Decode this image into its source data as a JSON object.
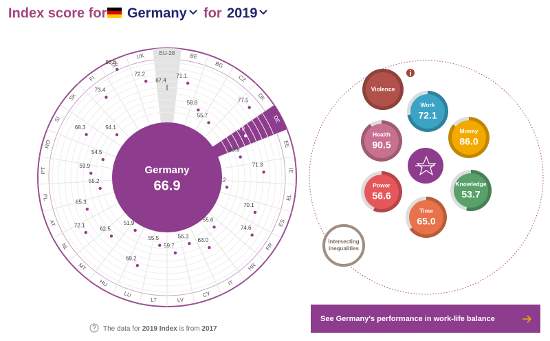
{
  "header": {
    "prefix": "Index score for",
    "country": "Germany",
    "middle": "for",
    "year": "2019"
  },
  "chart_data": {
    "type": "radial",
    "categories": [
      "EU-28",
      "BE",
      "BG",
      "CZ",
      "DK",
      "DE",
      "EE",
      "IE",
      "EL",
      "ES",
      "FR",
      "HR",
      "IT",
      "CY",
      "LV",
      "LT",
      "LU",
      "HU",
      "MT",
      "NL",
      "AT",
      "PL",
      "PT",
      "RO",
      "SI",
      "SK",
      "FI",
      "SE",
      "UK"
    ],
    "values": [
      67.4,
      71.1,
      58.8,
      55.7,
      77.5,
      66.9,
      59.8,
      71.3,
      51.2,
      70.1,
      74.6,
      55.6,
      63.0,
      56.3,
      59.7,
      55.5,
      69.2,
      51.9,
      62.5,
      72.1,
      65.3,
      55.2,
      59.9,
      54.5,
      68.3,
      54.1,
      73.4,
      83.6,
      72.2
    ],
    "value_labels": [
      "67.4",
      "71.1",
      "58.8",
      "55.7",
      "77.5",
      "66.9",
      "59.8",
      "71.3",
      "51.2",
      "70.1",
      "74.6",
      "55.6",
      "63.0",
      "56.3",
      "59.7",
      "55.5",
      "69.2",
      "51.9",
      "62.5",
      "72.1",
      "65.3",
      "55.2",
      "59.9",
      "54.5",
      "68.3",
      "54.1",
      "73.4",
      "83.6",
      "72.2"
    ],
    "color": "#8e3c8d"
  },
  "domains": [
    {
      "name": "Violence",
      "color": "#b0524a"
    },
    {
      "name": "Work",
      "value": 72.1,
      "value_label": "72.1",
      "color": "#3ba3c6"
    },
    {
      "name": "Money",
      "value": 86.0,
      "value_label": "86.0",
      "color": "#f2a900"
    },
    {
      "name": "Health",
      "value": 90.5,
      "value_label": "90.5",
      "color": "#c8708f"
    },
    {
      "name": "Knowledge",
      "value": 53.7,
      "value_label": "53.7",
      "color": "#5aa06a"
    },
    {
      "name": "Power",
      "value": 56.6,
      "value_label": "56.6",
      "color": "#e5575a"
    },
    {
      "name": "Time",
      "value": 65.0,
      "value_label": "65.0",
      "color": "#e8734a"
    }
  ],
  "intersecting": [
    "Intersecting",
    "inequalities"
  ],
  "footer": {
    "text1": "The data for",
    "index": "2019 Index",
    "text2": "is from",
    "year": "2017"
  },
  "button": "See Germany's performance in work-life balance"
}
